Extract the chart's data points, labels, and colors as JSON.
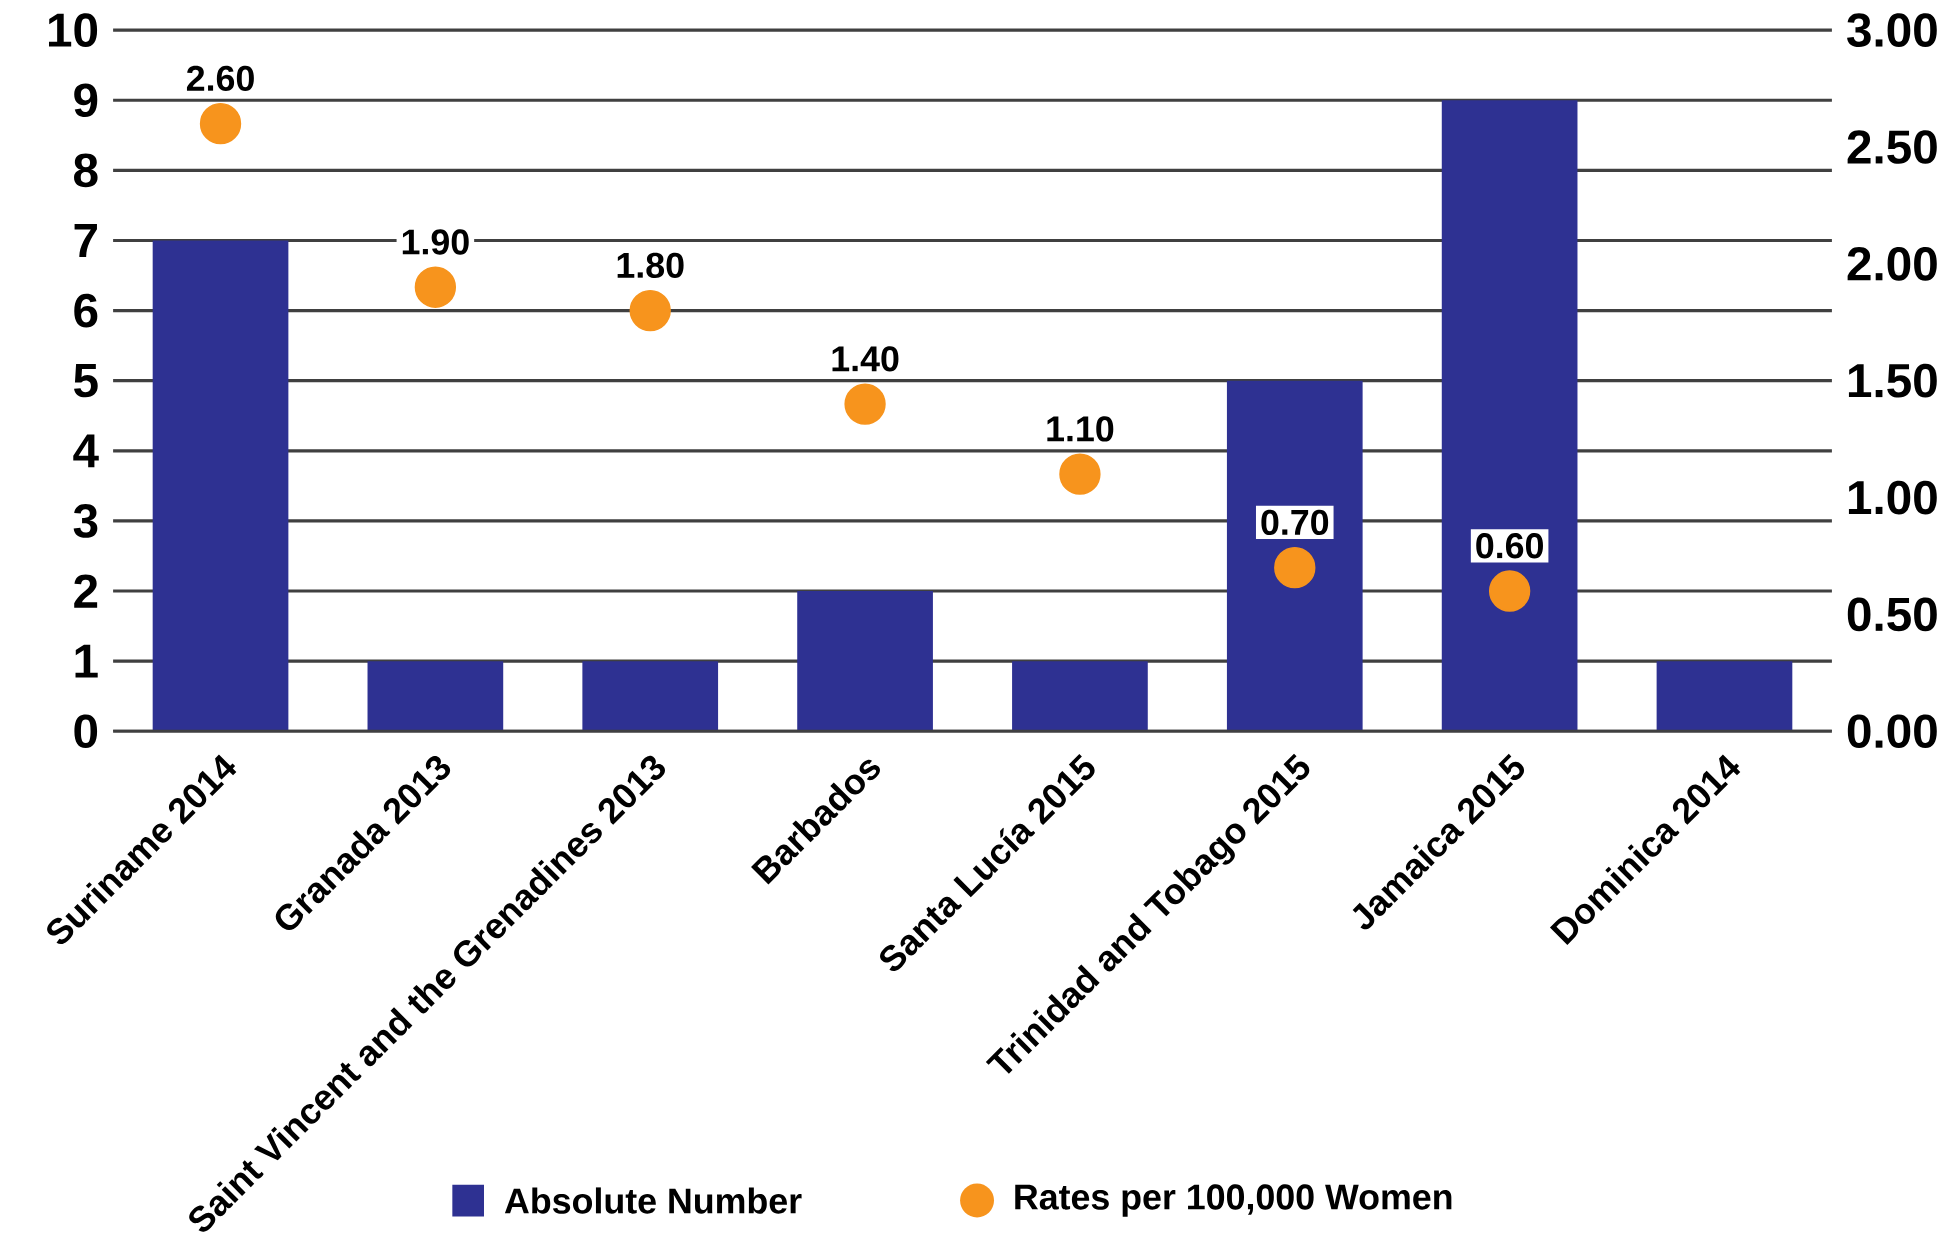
{
  "chart_data": {
    "type": "bar",
    "categories": [
      "Suriname 2014",
      "Granada 2013",
      "Saint Vincent and the Grenadines 2013",
      "Barbados",
      "Santa Lucía 2015",
      "Trinidad and Tobago 2015",
      "Jamaica 2015",
      "Dominica 2014"
    ],
    "series": [
      {
        "name": "Absolute Number",
        "color": "#2e3192",
        "values": [
          7,
          1,
          1,
          2,
          1,
          5,
          9,
          1
        ]
      },
      {
        "name": "Rates per 100,000 Women",
        "type": "scatter",
        "axis": "y2",
        "color": "#f7941d",
        "values": [
          2.6,
          1.9,
          1.8,
          1.4,
          1.1,
          0.7,
          0.6,
          null
        ],
        "value_labels": [
          "2.60",
          "1.90",
          "1.80",
          "1.40",
          "1.10",
          "0.70",
          "0.60",
          null
        ]
      }
    ],
    "ylim": [
      0,
      10
    ],
    "yticks": [
      0,
      1,
      2,
      3,
      4,
      5,
      6,
      7,
      8,
      9,
      10
    ],
    "y2lim": [
      0,
      3
    ],
    "y2ticks": [
      {
        "value": 0,
        "label": "0.00"
      },
      {
        "value": 0.5,
        "label": "0.50"
      },
      {
        "value": 1,
        "label": "1.00"
      },
      {
        "value": 1.5,
        "label": "1.50"
      },
      {
        "value": 2,
        "label": "2.00"
      },
      {
        "value": 2.5,
        "label": "2.50"
      },
      {
        "value": 3,
        "label": "3.00"
      }
    ],
    "grid": "y",
    "legend": "bottom",
    "marker": "circle"
  }
}
